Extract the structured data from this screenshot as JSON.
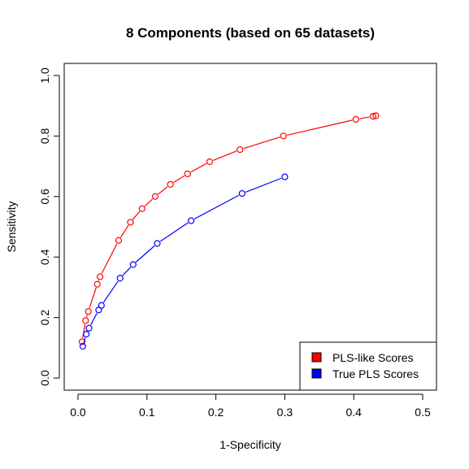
{
  "chart_data": {
    "type": "line",
    "title": "8 Components (based on 65 datasets)",
    "xlabel": "1-Specificity",
    "ylabel": "Sensitivity",
    "xlim": [
      -0.02,
      0.52
    ],
    "ylim": [
      -0.04,
      1.04
    ],
    "x_ticks": [
      0.0,
      0.1,
      0.2,
      0.3,
      0.4,
      0.5
    ],
    "x_tick_labels": [
      "0.0",
      "0.1",
      "0.2",
      "0.3",
      "0.4",
      "0.5"
    ],
    "y_ticks": [
      0.0,
      0.2,
      0.4,
      0.6,
      0.8,
      1.0
    ],
    "y_tick_labels": [
      "0.0",
      "0.2",
      "0.4",
      "0.6",
      "0.8",
      "1.0"
    ],
    "grid": false,
    "legend_position": "bottom-right",
    "marker": "open-circle",
    "series": [
      {
        "name": "PLS-like Scores",
        "color": "#ff0000",
        "x": [
          0.006,
          0.011,
          0.015,
          0.028,
          0.032,
          0.059,
          0.076,
          0.093,
          0.112,
          0.134,
          0.159,
          0.191,
          0.235,
          0.298,
          0.403,
          0.428,
          0.432
        ],
        "y": [
          0.12,
          0.19,
          0.22,
          0.31,
          0.335,
          0.455,
          0.515,
          0.56,
          0.6,
          0.64,
          0.675,
          0.715,
          0.755,
          0.8,
          0.855,
          0.865,
          0.867
        ]
      },
      {
        "name": "True PLS Scores",
        "color": "#0000ff",
        "x": [
          0.007,
          0.012,
          0.016,
          0.03,
          0.034,
          0.061,
          0.08,
          0.115,
          0.164,
          0.238,
          0.3
        ],
        "y": [
          0.105,
          0.145,
          0.165,
          0.225,
          0.24,
          0.33,
          0.375,
          0.445,
          0.52,
          0.61,
          0.665
        ]
      }
    ]
  }
}
